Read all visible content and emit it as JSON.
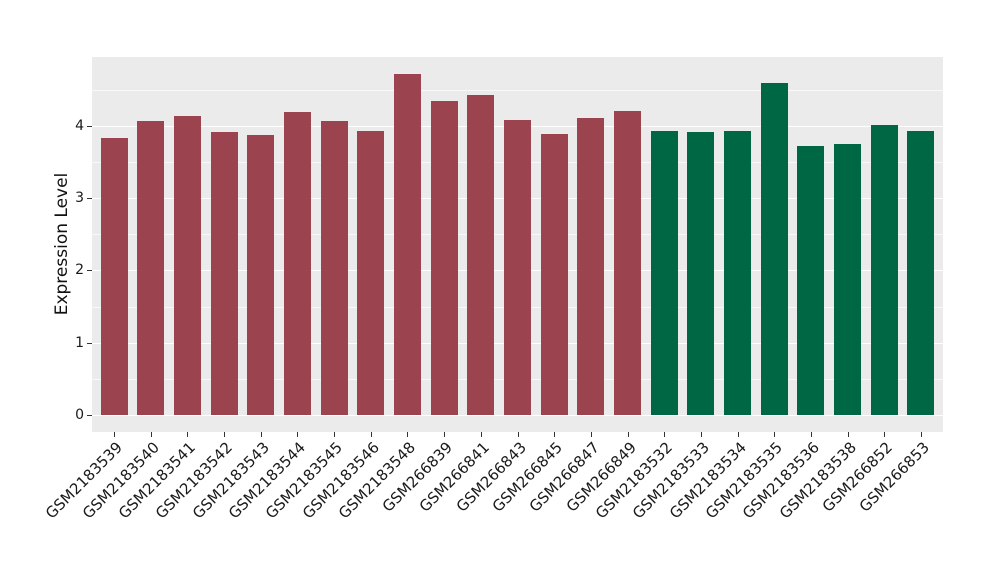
{
  "figure": {
    "background": "#FFFFFF",
    "panel_background": "#EBEBEB",
    "grid_color": "#FFFFFF",
    "axis_text_color": "#1a1a1a",
    "tick_mark_color": "#333333"
  },
  "chart_data": {
    "type": "bar",
    "title": "",
    "xlabel": "",
    "ylabel": "Expression Level",
    "categories": [
      "GSM2183539",
      "GSM2183540",
      "GSM2183541",
      "GSM2183542",
      "GSM2183543",
      "GSM2183544",
      "GSM2183545",
      "GSM2183546",
      "GSM2183548",
      "GSM266839",
      "GSM266841",
      "GSM266843",
      "GSM266845",
      "GSM266847",
      "GSM266849",
      "GSM2183532",
      "GSM2183533",
      "GSM2183534",
      "GSM2183535",
      "GSM2183536",
      "GSM2183538",
      "GSM266852",
      "GSM266853"
    ],
    "values": [
      3.84,
      4.07,
      4.14,
      3.92,
      3.88,
      4.2,
      4.07,
      3.93,
      4.72,
      4.35,
      4.43,
      4.08,
      3.89,
      4.12,
      4.21,
      3.93,
      3.92,
      3.94,
      4.6,
      3.72,
      3.75,
      4.02,
      3.93
    ],
    "bar_group_index": [
      0,
      0,
      0,
      0,
      0,
      0,
      0,
      0,
      0,
      0,
      0,
      0,
      0,
      0,
      0,
      1,
      1,
      1,
      1,
      1,
      1,
      1,
      1
    ],
    "group_colors": [
      "#9C4350",
      "#006745"
    ],
    "yticks": [
      0,
      1,
      2,
      3,
      4
    ],
    "ytick_labels": [
      "0",
      "1",
      "2",
      "3",
      "4"
    ],
    "minor_yticks": [
      0.5,
      1.5,
      2.5,
      3.5,
      4.5
    ],
    "ylim": [
      -0.24,
      4.96
    ],
    "x_tick_rotation": -45,
    "grid": "major-and-minor-horizontal",
    "legend": "none"
  }
}
